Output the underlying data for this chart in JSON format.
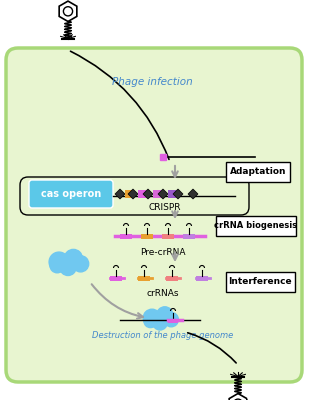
{
  "bg_color": "#ffffff",
  "cell_color": "#e8f5d0",
  "cell_border_color": "#a8d878",
  "text_phage_infection": "Phage infection",
  "text_adaptation": "Adaptation",
  "text_cas_operon": "cas operon",
  "text_crispr": "CRISPR",
  "text_pre_crRNA": "Pre-crRNA",
  "text_crRNA_biogenesis": "crRNA biogenesis",
  "text_crRNAs": "crRNAs",
  "text_interference": "Interference",
  "text_destruction": "Destruction of the phage genome",
  "cas_box_color": "#5bc8e8",
  "arrow_color": "#a0a0a0",
  "repeat_colors": [
    "#e060e0",
    "#e0a030",
    "#e060e0",
    "#e060e0",
    "#e060e0"
  ],
  "spacer_colors": [
    "#e0a030",
    "#e0a030",
    "#e060e0",
    "#a060e0"
  ],
  "pre_crRNA_colors": [
    "#e060e0",
    "#e0a030",
    "#f08080",
    "#c080e0"
  ],
  "crRNA_colors": [
    "#e060e0",
    "#e0a030",
    "#f08080",
    "#c080e0"
  ],
  "cloud_color": "#70c8f0",
  "magenta_seg": "#e060e0"
}
